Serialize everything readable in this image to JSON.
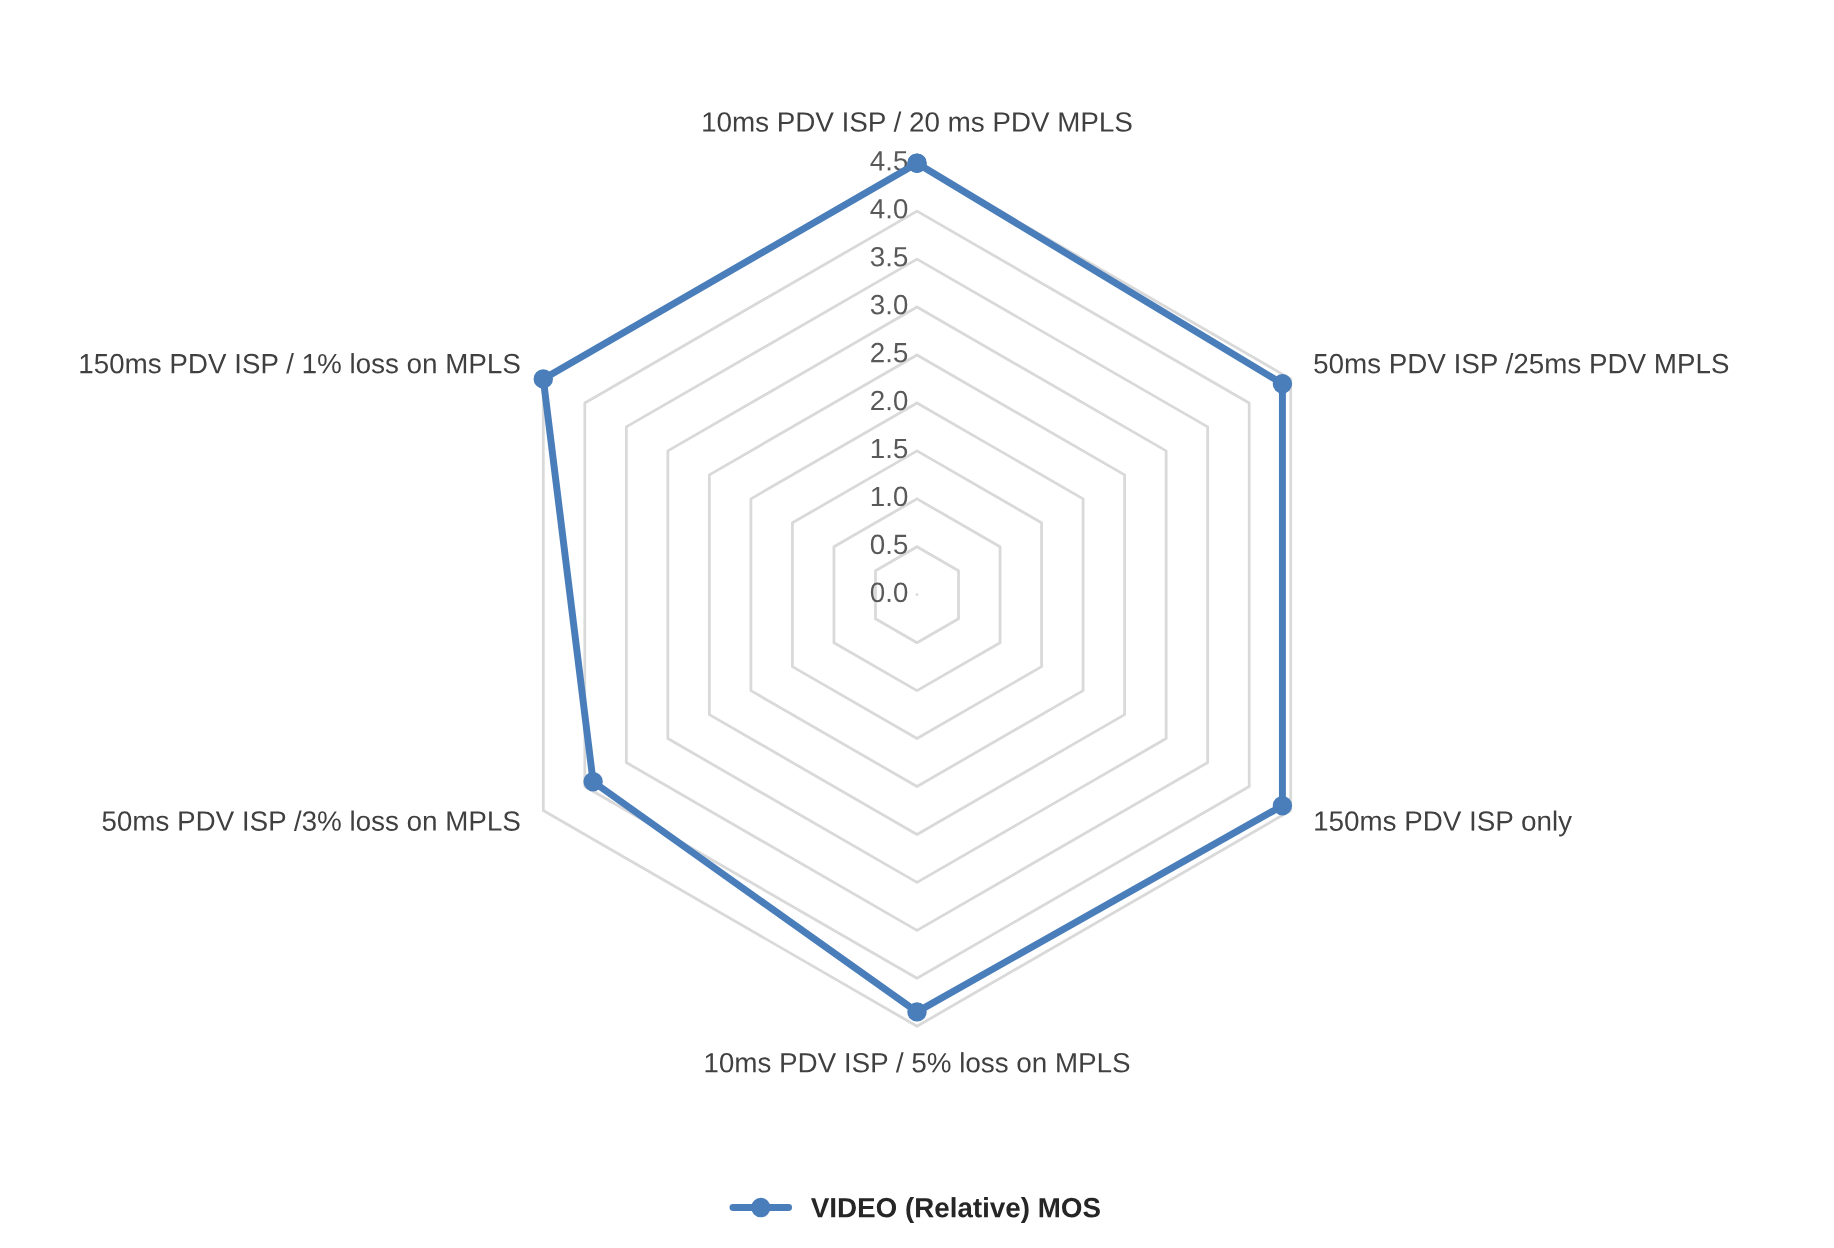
{
  "chart_data": {
    "type": "radar",
    "categories": [
      "10ms PDV ISP / 20 ms PDV MPLS",
      "50ms PDV ISP /25ms PDV MPLS",
      "150ms PDV ISP only",
      "10ms PDV ISP / 5% loss on MPLS",
      "50ms PDV ISP /3% loss on MPLS",
      "150ms PDV ISP / 1% loss on MPLS"
    ],
    "series": [
      {
        "name": "VIDEO (Relative) MOS",
        "color": "#4a7ebb",
        "values": [
          4.5,
          4.4,
          4.4,
          4.35,
          3.9,
          4.5
        ]
      }
    ],
    "ylim": [
      0,
      4.5
    ],
    "yticks": [
      {
        "value": 0,
        "label": "0.0"
      },
      {
        "value": 0.5,
        "label": "0.5"
      },
      {
        "value": 1,
        "label": "1.0"
      },
      {
        "value": 1.5,
        "label": "1.5"
      },
      {
        "value": 2,
        "label": "2.0"
      },
      {
        "value": 2.5,
        "label": "2.5"
      },
      {
        "value": 3,
        "label": "3.0"
      },
      {
        "value": 3.5,
        "label": "3.5"
      },
      {
        "value": 4,
        "label": "4.0"
      },
      {
        "value": 4.5,
        "label": "4.5"
      }
    ],
    "grid": true,
    "legend": "bottom",
    "marker": "circle",
    "line_style": "solid"
  }
}
